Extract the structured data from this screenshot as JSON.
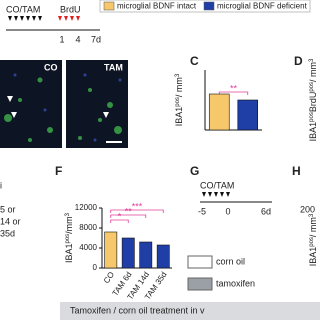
{
  "legend": {
    "intact": "microglial BDNF intact",
    "deficient": "microglial BDNF deficient",
    "intact_color": "#f6c76b",
    "deficient_color": "#1f3fa6"
  },
  "timeline_a": {
    "treat": "CO/TAM",
    "brdu": "BrdU",
    "ticks": [
      "1",
      "4",
      "7d"
    ]
  },
  "images": {
    "left": "CO",
    "right": "TAM"
  },
  "panels": {
    "C": "C",
    "D": "D",
    "F": "F",
    "G": "G",
    "H": "H"
  },
  "panel_d_ylabel": [
    "IBA1",
    "pos",
    "BrdU",
    "pos",
    "/ mm",
    "3"
  ],
  "left_fragment": [
    "i",
    "5 or",
    "14 or",
    "35d"
  ],
  "timeline_g": {
    "treat": "CO/TAM",
    "ticks": [
      "-5",
      "0",
      "6d"
    ]
  },
  "legend_g": {
    "corn": "corn oil",
    "tam": "tamoxifen"
  },
  "panel_h": {
    "tick": "200",
    "ylabel": [
      "IBA1",
      "pos",
      "/ mm",
      "3"
    ]
  },
  "footer": "Tamoxifen / corn oil treatment in v",
  "chart_data": [
    {
      "type": "bar",
      "ylabel": [
        "IBA1",
        "pos",
        "/ mm",
        "3"
      ],
      "categories": [
        null,
        null
      ],
      "values": [
        7200,
        6000
      ],
      "colors": [
        "#f6c76b",
        "#1f3fa6"
      ],
      "ylim": [
        0,
        12000
      ],
      "yticks": [],
      "significance": [
        "**"
      ]
    },
    {
      "type": "bar",
      "ylabel": [
        "IBA1",
        "pos",
        "/mm",
        "3"
      ],
      "categories": [
        "CO",
        "TAM 6d",
        "TAM 14d",
        "TAM 35d"
      ],
      "values": [
        7200,
        6000,
        5200,
        4600
      ],
      "colors": [
        "#f6c76b",
        "#1f3fa6",
        "#1f3fa6",
        "#1f3fa6"
      ],
      "ylim": [
        0,
        12000
      ],
      "yticks": [
        0,
        4000,
        8000,
        12000
      ],
      "significance": [
        "*",
        "**",
        "***"
      ]
    }
  ]
}
